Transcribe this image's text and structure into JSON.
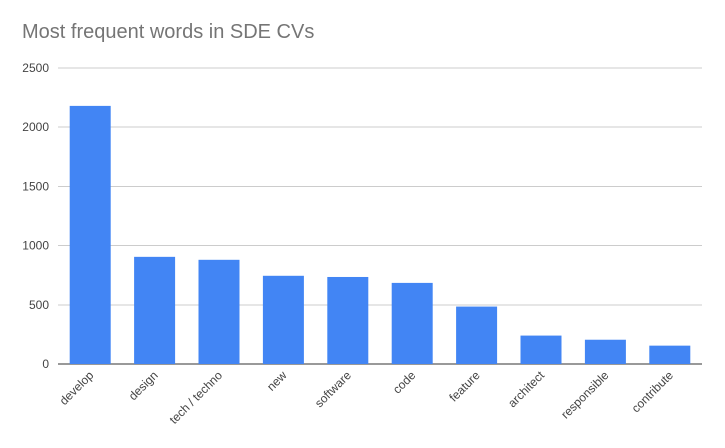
{
  "chart_data": {
    "type": "bar",
    "title": "Most frequent words in SDE CVs",
    "xlabel": "",
    "ylabel": "",
    "categories": [
      "develop",
      "design",
      "tech / techno",
      "new",
      "software",
      "code",
      "feature",
      "architect",
      "responsible",
      "contribute"
    ],
    "values": [
      2180,
      905,
      880,
      745,
      735,
      685,
      485,
      240,
      205,
      155
    ],
    "ylim": [
      0,
      2500
    ],
    "yticks": [
      0,
      500,
      1000,
      1500,
      2000,
      2500
    ],
    "grid": true,
    "legend": "none",
    "bar_color": "#4285f4",
    "grid_color": "#cccccc"
  }
}
